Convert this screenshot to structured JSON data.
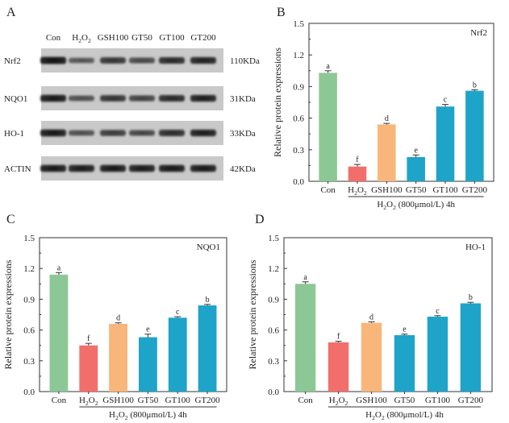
{
  "panel_labels": [
    "A",
    "B",
    "C",
    "D"
  ],
  "blot": {
    "lane_labels": [
      "Con",
      "H2O2",
      "GSH100",
      "GT50",
      "GT100",
      "GT200"
    ],
    "rows": [
      {
        "protein": "Nrf2",
        "size": "110KDa",
        "intensity": [
          1.0,
          0.45,
          0.72,
          0.55,
          0.82,
          0.88
        ]
      },
      {
        "protein": "NQO1",
        "size": "31KDa",
        "intensity": [
          0.95,
          0.5,
          0.72,
          0.62,
          0.82,
          0.9
        ]
      },
      {
        "protein": "HO-1",
        "size": "33KDa",
        "intensity": [
          0.95,
          0.5,
          0.66,
          0.58,
          0.8,
          0.9
        ]
      },
      {
        "protein": "ACTIN",
        "size": "42KDa",
        "intensity": [
          0.95,
          0.93,
          0.95,
          0.93,
          0.95,
          0.95
        ]
      }
    ]
  },
  "colors": {
    "Con": "#8cc896",
    "H2O2": "#f26e6a",
    "GSH100": "#f8b67a",
    "GT": "#1ea4c8"
  },
  "chart_data": [
    {
      "type": "bar",
      "panel": "B",
      "title": "Nrf2",
      "ylabel": "Relative protein expressions",
      "xlabel": "H2O2 (800μmol/L) 4h",
      "categories": [
        "Con",
        "H2O2",
        "GSH100",
        "GT50",
        "GT100",
        "GT200"
      ],
      "values": [
        1.03,
        0.14,
        0.54,
        0.23,
        0.71,
        0.86
      ],
      "errors": [
        0.02,
        0.02,
        0.01,
        0.02,
        0.02,
        0.01
      ],
      "letters": [
        "a",
        "f",
        "d",
        "e",
        "c",
        "b"
      ],
      "ylim": [
        0,
        1.5
      ],
      "yticks": [
        "0.0",
        "0.3",
        "0.6",
        "0.9",
        "1.2",
        "1.5"
      ]
    },
    {
      "type": "bar",
      "panel": "C",
      "title": "NQO1",
      "ylabel": "Relative protein expressions",
      "xlabel": "H2O2 (800μmol/L) 4h",
      "categories": [
        "Con",
        "H2O2",
        "GSH100",
        "GT50",
        "GT100",
        "GT200"
      ],
      "values": [
        1.14,
        0.45,
        0.66,
        0.53,
        0.72,
        0.84
      ],
      "errors": [
        0.02,
        0.02,
        0.01,
        0.03,
        0.01,
        0.01
      ],
      "letters": [
        "a",
        "f",
        "d",
        "e",
        "c",
        "b"
      ],
      "ylim": [
        0,
        1.5
      ],
      "yticks": [
        "0.0",
        "0.3",
        "0.6",
        "0.9",
        "1.2",
        "1.5"
      ]
    },
    {
      "type": "bar",
      "panel": "D",
      "title": "HO-1",
      "ylabel": "Relative protein expressions",
      "xlabel": "H2O2 (800μmol/L) 4h",
      "categories": [
        "Con",
        "H2O2",
        "GSH100",
        "GT50",
        "GT100",
        "GT200"
      ],
      "values": [
        1.05,
        0.48,
        0.67,
        0.55,
        0.73,
        0.86
      ],
      "errors": [
        0.02,
        0.01,
        0.01,
        0.01,
        0.01,
        0.01
      ],
      "letters": [
        "a",
        "f",
        "d",
        "e",
        "c",
        "b"
      ],
      "ylim": [
        0,
        1.5
      ],
      "yticks": [
        "0.0",
        "0.3",
        "0.6",
        "0.9",
        "1.2",
        "1.5"
      ]
    }
  ]
}
